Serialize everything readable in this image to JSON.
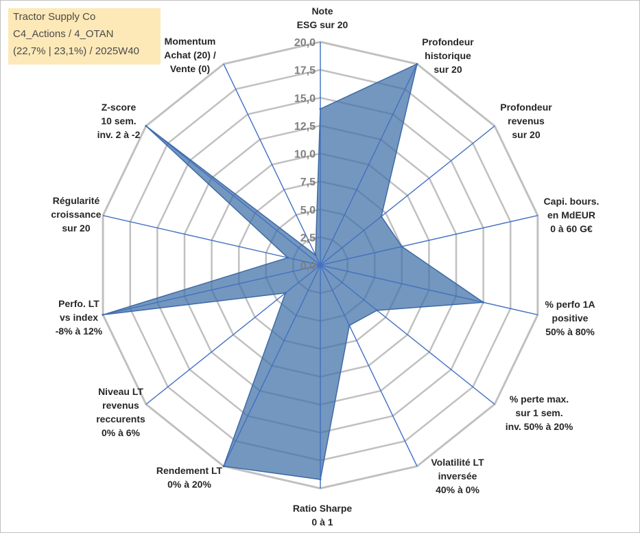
{
  "info_box": {
    "line1": "Tractor Supply Co",
    "line2": "C4_Actions / 4_OTAN",
    "line3": "(22,7% | 23,1%) / 2025W40"
  },
  "colors": {
    "fill": "#3f6fa8",
    "outline": "#3d6aa3",
    "spoke": "#4472c4",
    "grid": "#c0c0c0",
    "info_bg": "#fde9b8"
  },
  "chart_data": {
    "type": "radar",
    "title": "",
    "rlim": [
      0,
      20
    ],
    "ticks": [
      "0,0",
      "2,5",
      "5,0",
      "7,5",
      "10,0",
      "12,5",
      "15,0",
      "17,5",
      "20,0"
    ],
    "tick_values": [
      0,
      2.5,
      5,
      7.5,
      10,
      12.5,
      15,
      17.5,
      20
    ],
    "grid": true,
    "legend": "none",
    "axes": [
      {
        "lines": [
          "Note",
          "ESG sur 20"
        ],
        "value": 14.0
      },
      {
        "lines": [
          "Profondeur",
          "historique",
          "sur 20"
        ],
        "value": 20.0
      },
      {
        "lines": [
          "Profondeur",
          "revenus",
          "sur 20"
        ],
        "value": 7.0
      },
      {
        "lines": [
          "Capi. bours.",
          "en MdEUR",
          "0 à 60 G€"
        ],
        "value": 7.5
      },
      {
        "lines": [
          "% perfo 1A",
          "positive",
          "50% à 80%"
        ],
        "value": 15.0
      },
      {
        "lines": [
          "% perte max.",
          "sur 1 sem.",
          "inv. 50% à 20%"
        ],
        "value": 6.5
      },
      {
        "lines": [
          "Volatilité LT",
          "inversée",
          "40% à 0%"
        ],
        "value": 6.0
      },
      {
        "lines": [
          "Ratio Sharpe",
          "0 à 1"
        ],
        "value": 19.2
      },
      {
        "lines": [
          "Rendement LT",
          "0% à 20%"
        ],
        "value": 20.0
      },
      {
        "lines": [
          "Niveau LT",
          "revenus",
          "reccurents",
          "0% à 6%"
        ],
        "value": 4.0
      },
      {
        "lines": [
          "Perfo. LT",
          "vs index",
          "-8% à 12%"
        ],
        "value": 20.0
      },
      {
        "lines": [
          "Régularité",
          "croissance",
          "sur 20"
        ],
        "value": 3.0
      },
      {
        "lines": [
          "Z-score",
          "10 sem.",
          "inv. 2 à -2"
        ],
        "value": 20.0
      },
      {
        "lines": [
          "Momentum",
          "Achat (20) /",
          "Vente (0)"
        ],
        "value": 1.0
      }
    ]
  }
}
